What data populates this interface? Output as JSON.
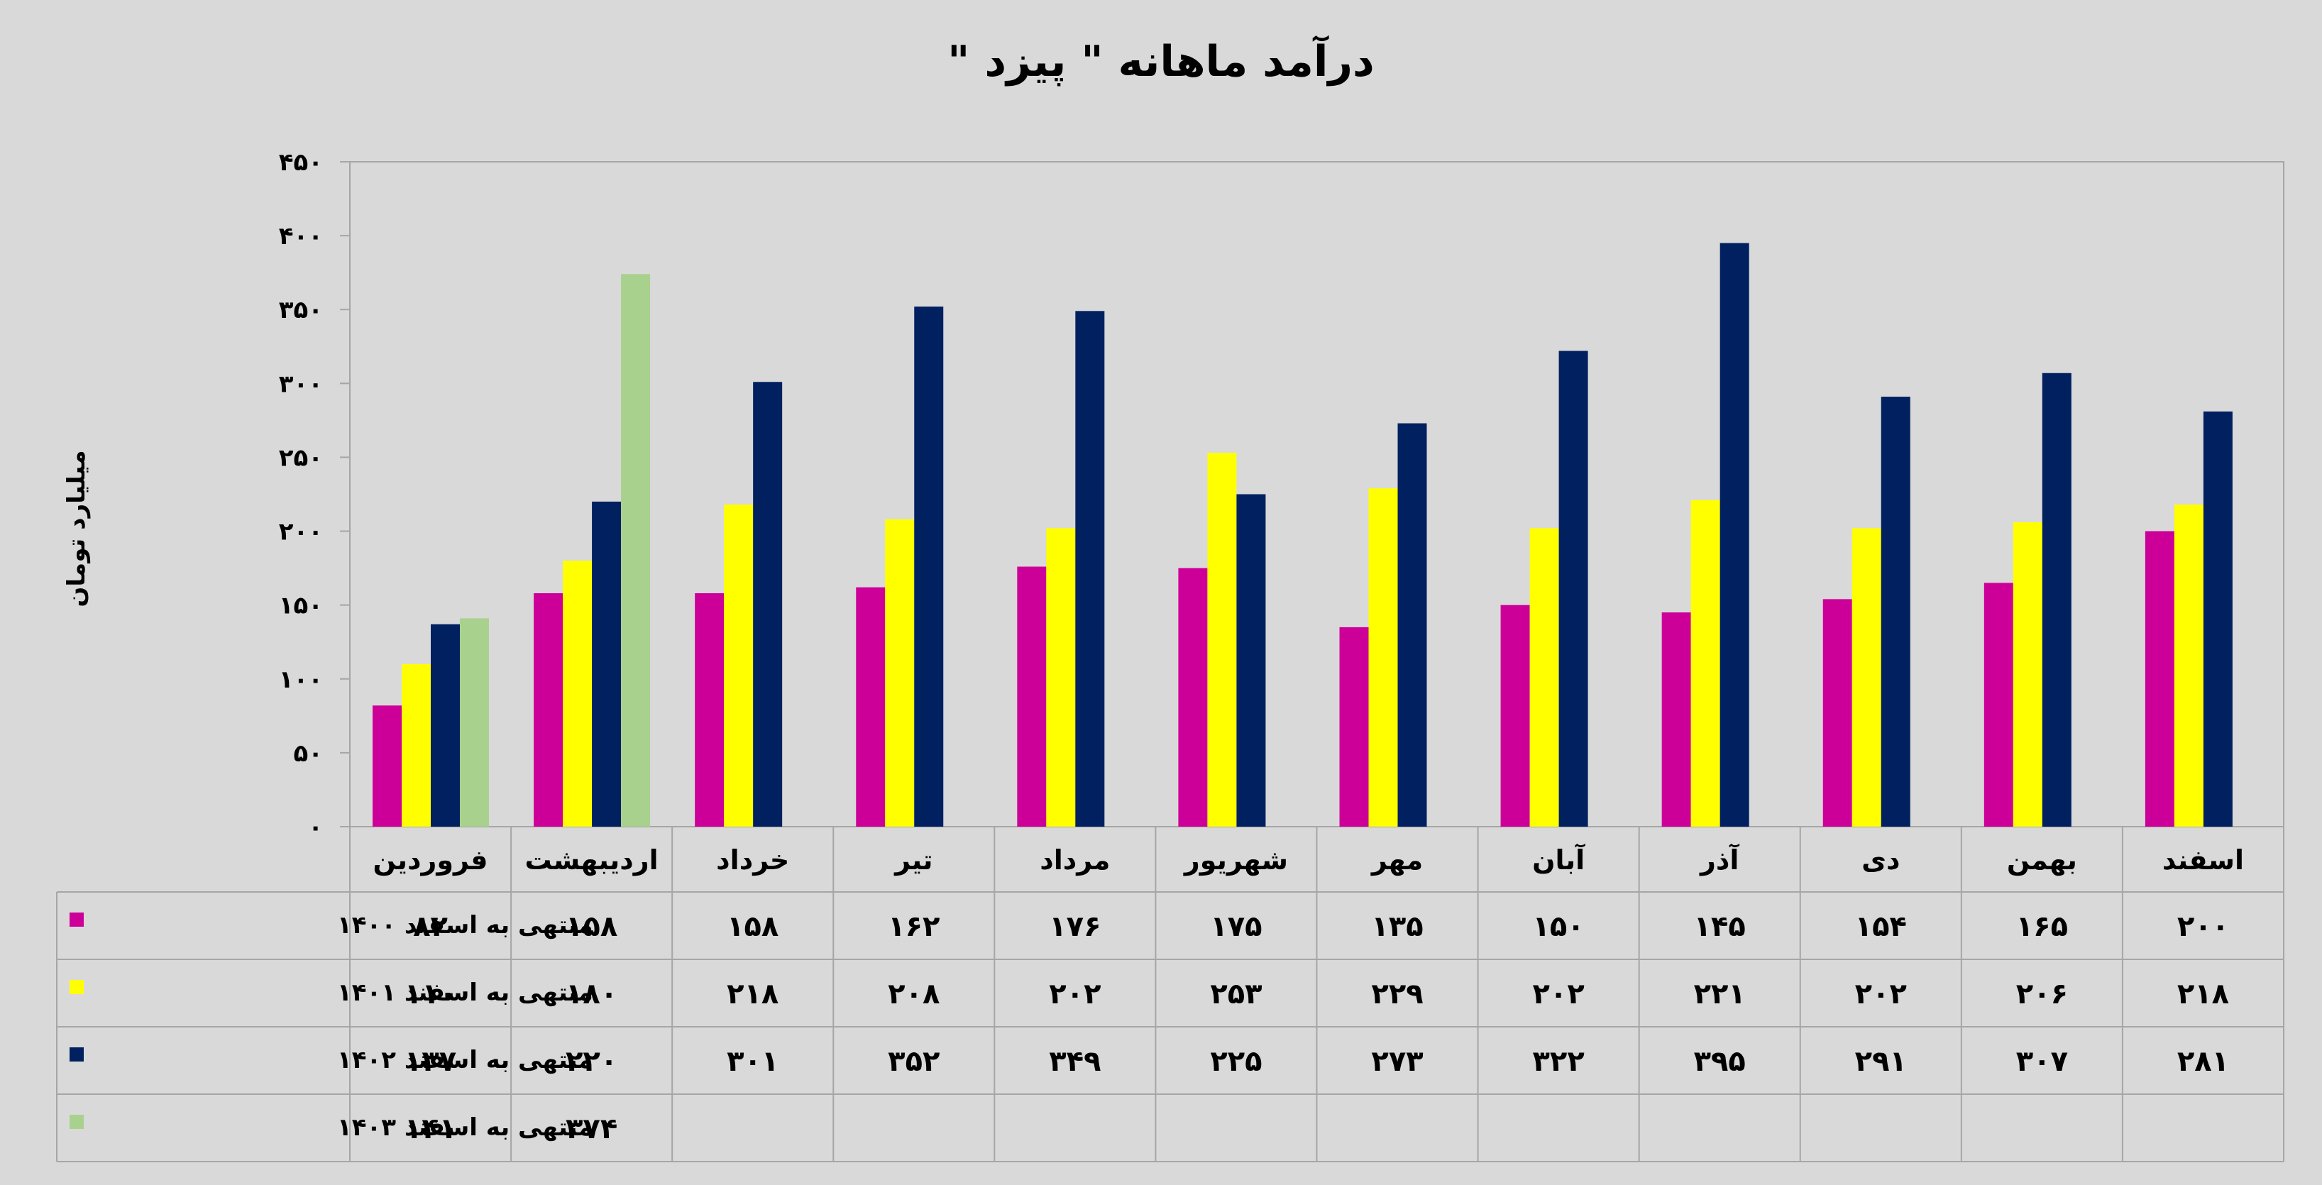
{
  "chart_data": {
    "type": "bar",
    "title": "درآمد ماهانه \" پیزد \"",
    "ylabel": "میلیارد تومان",
    "ylim": [
      0,
      450
    ],
    "yticks": [
      "۰",
      "۵۰",
      "۱۰۰",
      "۱۵۰",
      "۲۰۰",
      "۲۵۰",
      "۳۰۰",
      "۳۵۰",
      "۴۰۰",
      "۴۵۰"
    ],
    "categories": [
      "فروردین",
      "اردیبهشت",
      "خرداد",
      "تیر",
      "مرداد",
      "شهریور",
      "مهر",
      "آبان",
      "آذر",
      "دی",
      "بهمن",
      "اسفند"
    ],
    "series": [
      {
        "name": "منتهی به اسفند ۱۴۰۰",
        "color": "#cc0099",
        "values": [
          82,
          158,
          158,
          162,
          176,
          175,
          135,
          150,
          145,
          154,
          165,
          200
        ],
        "labels": [
          "۸۲",
          "۱۵۸",
          "۱۵۸",
          "۱۶۲",
          "۱۷۶",
          "۱۷۵",
          "۱۳۵",
          "۱۵۰",
          "۱۴۵",
          "۱۵۴",
          "۱۶۵",
          "۲۰۰"
        ]
      },
      {
        "name": "منتهی به اسفند ۱۴۰۱",
        "color": "#ffff00",
        "values": [
          110,
          180,
          218,
          208,
          202,
          253,
          229,
          202,
          221,
          202,
          206,
          218
        ],
        "labels": [
          "۱۱۰",
          "۱۸۰",
          "۲۱۸",
          "۲۰۸",
          "۲۰۲",
          "۲۵۳",
          "۲۲۹",
          "۲۰۲",
          "۲۲۱",
          "۲۰۲",
          "۲۰۶",
          "۲۱۸"
        ]
      },
      {
        "name": "منتهی به اسفند ۱۴۰۲",
        "color": "#002060",
        "values": [
          137,
          220,
          301,
          352,
          349,
          225,
          273,
          322,
          395,
          291,
          307,
          281
        ],
        "labels": [
          "۱۳۷",
          "۲۲۰",
          "۳۰۱",
          "۳۵۲",
          "۳۴۹",
          "۲۲۵",
          "۲۷۳",
          "۳۲۲",
          "۳۹۵",
          "۲۹۱",
          "۳۰۷",
          "۲۸۱"
        ]
      },
      {
        "name": "منتهی به اسفند ۱۴۰۳",
        "color": "#a9d18e",
        "values": [
          141,
          374,
          null,
          null,
          null,
          null,
          null,
          null,
          null,
          null,
          null,
          null
        ],
        "labels": [
          "۱۴۱",
          "۳۷۴",
          "",
          "",
          "",
          "",
          "",
          "",
          "",
          "",
          "",
          ""
        ]
      }
    ],
    "grid": false,
    "legend": "data-table"
  }
}
